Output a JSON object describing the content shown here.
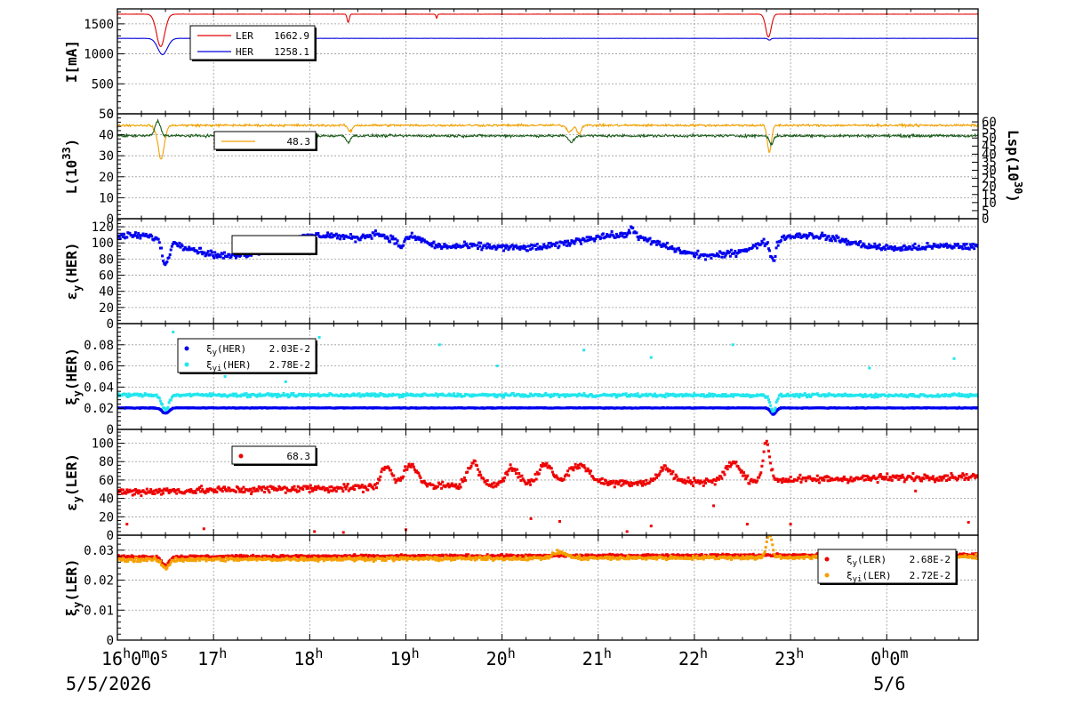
{
  "chart_data": [
    {
      "type": "line",
      "ylabel": "I[mA]",
      "ylim": [
        0,
        1750
      ],
      "yticks": [
        0,
        500,
        1000,
        1500
      ],
      "series": [
        {
          "name": "LER",
          "color": "#e00000",
          "legend_value": "1662.9",
          "style": "line",
          "base": 1662,
          "dips": [
            [
              0.45,
              0.06,
              540
            ],
            [
              2.4,
              0.015,
              140
            ],
            [
              3.32,
              0.01,
              70
            ],
            [
              6.77,
              0.04,
              380
            ]
          ],
          "noise": 3
        },
        {
          "name": "HER",
          "color": "#0000dd",
          "legend_value": "1258.1",
          "style": "line",
          "base": 1258,
          "dips": [
            [
              0.47,
              0.07,
              270
            ],
            [
              6.78,
              0.02,
              30
            ]
          ],
          "noise": 2
        }
      ],
      "legend": {
        "position": "top-left",
        "entries": [
          {
            "label": "LER",
            "value": "1662.9",
            "color": "#e00000",
            "marker": "line"
          },
          {
            "label": "HER",
            "value": "1258.1",
            "color": "#0000dd",
            "marker": "line"
          }
        ]
      }
    },
    {
      "type": "line",
      "ylabel": "L(10^33)",
      "ylabel_right": "Lsp(10^30)",
      "ylim": [
        0,
        50
      ],
      "yticks": [
        0,
        10,
        20,
        30,
        40,
        50
      ],
      "right_ylim": [
        0,
        65
      ],
      "right_yticks": [
        0,
        5,
        10,
        15,
        20,
        25,
        30,
        35,
        40,
        45,
        50,
        55,
        60
      ],
      "series": [
        {
          "name": "L",
          "color": "#f0a000",
          "style": "line",
          "base": 44.5,
          "dips": [
            [
              0.45,
              0.05,
              17
            ],
            [
              2.42,
              0.03,
              3
            ],
            [
              4.7,
              0.04,
              3
            ],
            [
              4.8,
              0.03,
              4
            ],
            [
              6.78,
              0.03,
              13
            ]
          ],
          "bumps": [
            [
              0.42,
              0.03,
              3
            ]
          ],
          "noise": 0.8
        },
        {
          "name": "Lsp",
          "color": "#1a5c1a",
          "style": "line",
          "base": 39.5,
          "dips": [
            [
              2.4,
              0.03,
              3
            ],
            [
              4.72,
              0.04,
              3
            ],
            [
              6.8,
              0.03,
              4
            ]
          ],
          "bumps": [
            [
              0.42,
              0.04,
              7
            ]
          ],
          "noise": 0.9
        }
      ],
      "legend": {
        "position": "top-left",
        "entries": [
          {
            "label": "",
            "value": "48.3",
            "color": "#f0a000",
            "marker": "line"
          }
        ]
      }
    },
    {
      "type": "scatter",
      "ylabel": "εy(HER)",
      "ylim": [
        0,
        130
      ],
      "yticks": [
        0,
        20,
        40,
        60,
        80,
        100,
        120
      ],
      "series": [
        {
          "name": "",
          "color": "#0000ee",
          "style": "dots",
          "base": 98,
          "waves": [
            [
              0.3,
              1.2,
              6
            ],
            [
              1.8,
              0.8,
              8
            ]
          ],
          "dips": [
            [
              0.5,
              0.05,
              30
            ],
            [
              6.82,
              0.04,
              25
            ],
            [
              2.95,
              0.05,
              10
            ]
          ],
          "bumps": [
            [
              2.7,
              0.15,
              12
            ],
            [
              3.05,
              0.2,
              14
            ],
            [
              5.35,
              0.04,
              12
            ]
          ],
          "noise": 6
        }
      ],
      "legend": {
        "position": "top-left",
        "entries": []
      }
    },
    {
      "type": "scatter",
      "ylabel": "ξy(HER)",
      "ylim": [
        0,
        0.1
      ],
      "yticks": [
        0,
        0.02,
        0.04,
        0.06,
        0.08
      ],
      "ytick_labels": [
        "0",
        "0.02",
        "0.04",
        "0.06",
        "0.08"
      ],
      "series": [
        {
          "name": "ξy(HER)",
          "color": "#0000ee",
          "legend_value": "2.03E-2",
          "style": "dots",
          "base": 0.0203,
          "dips": [
            [
              0.5,
              0.05,
              0.005
            ],
            [
              6.82,
              0.04,
              0.006
            ]
          ],
          "noise": 0.0005
        },
        {
          "name": "ξyi(HER)",
          "color": "#22e6ee",
          "legend_value": "2.78E-2",
          "style": "dots",
          "base": 0.0325,
          "dips": [
            [
              0.5,
              0.05,
              0.014
            ],
            [
              6.82,
              0.04,
              0.015
            ]
          ],
          "noise": 0.0022,
          "trend": -0.0004,
          "outliers": [
            [
              0.58,
              0.092
            ],
            [
              2.1,
              0.087
            ],
            [
              1.12,
              0.05
            ],
            [
              3.35,
              0.08
            ],
            [
              3.95,
              0.06
            ],
            [
              4.85,
              0.075
            ],
            [
              5.55,
              0.068
            ],
            [
              6.4,
              0.08
            ],
            [
              7.82,
              0.058
            ],
            [
              8.7,
              0.067
            ],
            [
              1.75,
              0.045
            ]
          ]
        }
      ],
      "legend": {
        "position": "top-left",
        "entries": [
          {
            "label": "ξy(HER)",
            "value": "2.03E-2",
            "color": "#0000ee",
            "marker": "dot"
          },
          {
            "label": "ξyi(HER)",
            "value": "2.78E-2",
            "color": "#22e6ee",
            "marker": "dot"
          }
        ]
      }
    },
    {
      "type": "scatter",
      "ylabel": "εy(LER)",
      "ylim": [
        0,
        115
      ],
      "yticks": [
        0,
        20,
        40,
        60,
        80,
        100
      ],
      "series": [
        {
          "name": "",
          "color": "#ee0000",
          "legend_value": "68.3",
          "style": "dots",
          "base": 47,
          "trend": 17,
          "bumps": [
            [
              2.8,
              0.08,
              22
            ],
            [
              3.05,
              0.1,
              25
            ],
            [
              3.7,
              0.08,
              25
            ],
            [
              4.1,
              0.1,
              18
            ],
            [
              4.45,
              0.1,
              22
            ],
            [
              4.8,
              0.15,
              20
            ],
            [
              5.7,
              0.1,
              15
            ],
            [
              6.4,
              0.1,
              20
            ],
            [
              6.75,
              0.05,
              40
            ]
          ],
          "noise": 6,
          "outliers": [
            [
              0.1,
              12
            ],
            [
              0.9,
              7
            ],
            [
              2.05,
              4
            ],
            [
              2.35,
              3
            ],
            [
              3.0,
              6
            ],
            [
              4.3,
              18
            ],
            [
              4.6,
              15
            ],
            [
              5.3,
              4
            ],
            [
              5.55,
              10
            ],
            [
              6.2,
              32
            ],
            [
              6.55,
              12
            ],
            [
              7.0,
              12
            ],
            [
              8.3,
              48
            ],
            [
              8.85,
              14
            ]
          ]
        }
      ],
      "legend": {
        "position": "top-left",
        "entries": [
          {
            "label": "",
            "value": "68.3",
            "color": "#ee0000",
            "marker": "dot"
          }
        ]
      }
    },
    {
      "type": "scatter",
      "ylabel": "ξy(LER)",
      "ylim": [
        0,
        0.035
      ],
      "yticks": [
        0,
        0.01,
        0.02,
        0.03
      ],
      "ytick_labels": [
        "0",
        "0.01",
        "0.02",
        "0.03"
      ],
      "series": [
        {
          "name": "ξy(LER)",
          "color": "#ee0000",
          "legend_value": "2.68E-2",
          "style": "dots",
          "base": 0.0278,
          "dips": [
            [
              0.5,
              0.05,
              0.003
            ]
          ],
          "noise": 0.0006,
          "trend": 0.0007
        },
        {
          "name": "ξyi(LER)",
          "color": "#f5a000",
          "legend_value": "2.72E-2",
          "style": "dots",
          "base": 0.0268,
          "dips": [
            [
              0.5,
              0.05,
              0.003
            ]
          ],
          "bumps": [
            [
              6.78,
              0.04,
              0.008
            ],
            [
              4.6,
              0.1,
              0.002
            ]
          ],
          "noise": 0.0009,
          "trend": 0.001
        }
      ],
      "legend": {
        "position": "top-right",
        "entries": [
          {
            "label": "ξy(LER)",
            "value": "2.68E-2",
            "color": "#ee0000",
            "marker": "dot"
          },
          {
            "label": "ξyi(LER)",
            "value": "2.72E-2",
            "color": "#f5a000",
            "marker": "dot"
          }
        ]
      }
    }
  ],
  "x_axis": {
    "xlim": [
      0,
      8.95
    ],
    "major_ticks": [
      0,
      1,
      2,
      3,
      4,
      5,
      6,
      7,
      8
    ],
    "tick_labels": [
      {
        "x": 0,
        "parts": [
          [
            "16",
            "n"
          ],
          [
            "h",
            "s"
          ],
          [
            "0",
            "n"
          ],
          [
            "m",
            "s"
          ],
          [
            "0",
            "n"
          ],
          [
            "s",
            "s"
          ]
        ]
      },
      {
        "x": 1,
        "parts": [
          [
            "17",
            "n"
          ],
          [
            "h",
            "s"
          ]
        ]
      },
      {
        "x": 2,
        "parts": [
          [
            "18",
            "n"
          ],
          [
            "h",
            "s"
          ]
        ]
      },
      {
        "x": 3,
        "parts": [
          [
            "19",
            "n"
          ],
          [
            "h",
            "s"
          ]
        ]
      },
      {
        "x": 4,
        "parts": [
          [
            "20",
            "n"
          ],
          [
            "h",
            "s"
          ]
        ]
      },
      {
        "x": 5,
        "parts": [
          [
            "21",
            "n"
          ],
          [
            "h",
            "s"
          ]
        ]
      },
      {
        "x": 6,
        "parts": [
          [
            "22",
            "n"
          ],
          [
            "h",
            "s"
          ]
        ]
      },
      {
        "x": 7,
        "parts": [
          [
            "23",
            "n"
          ],
          [
            "h",
            "s"
          ]
        ]
      },
      {
        "x": 8,
        "parts": [
          [
            "0",
            "n"
          ],
          [
            "h",
            "s"
          ],
          [
            "0",
            "n"
          ],
          [
            "m",
            "s"
          ]
        ]
      }
    ],
    "date_labels": [
      {
        "x": 0,
        "text": "5/5/2026"
      },
      {
        "x": 8,
        "text": "5/6"
      }
    ]
  }
}
